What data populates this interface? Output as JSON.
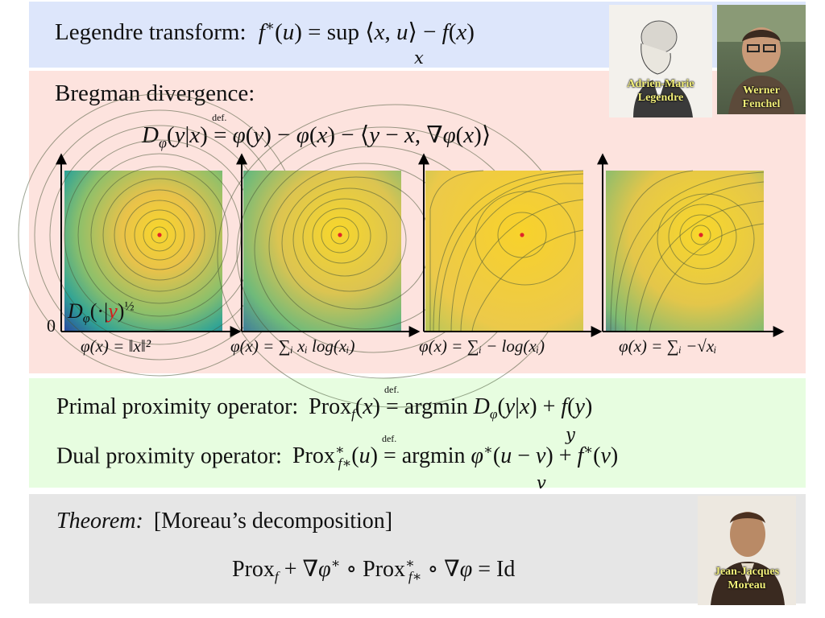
{
  "sections": {
    "legendre": {
      "label": "Legendre transform:",
      "formula_main": "f*(u) = sup ⟨x, u⟩ − f(x)",
      "formula_under": "x"
    },
    "bregman": {
      "label": "Bregman divergence:",
      "formula": "Dφ(y|x) ≝ φ(y) − φ(x) − ⟨y − x, ∇φ(x)⟩",
      "plot_overlay": "Dφ(·|y)^(1/2)",
      "origin_label": "0",
      "plots": [
        {
          "caption": "φ(x) = ‖x‖²"
        },
        {
          "caption": "φ(x) = ∑ᵢ xᵢ log(xᵢ)"
        },
        {
          "caption": "φ(x) = ∑ᵢ − log(xᵢ)"
        },
        {
          "caption": "φ(x) = ∑ᵢ −√xᵢ"
        }
      ]
    },
    "prox": {
      "primal_label": "Primal proximity operator:",
      "primal_formula": "Prox_f(x) ≝ argmin Dφ(y|x) + f(y)",
      "primal_under": "y",
      "dual_label": "Dual proximity operator:",
      "dual_formula": "Prox*_f*(u) ≝ argmin φ*(u − v) + f*(v)",
      "dual_under": "v"
    },
    "theorem": {
      "label": "Theorem:",
      "name": "[Moreau’s decomposition]",
      "formula": "Prox_f + ∇φ* ∘ Prox*_f* ∘ ∇φ = Id"
    }
  },
  "portraits": [
    {
      "name_line1": "Adrien-Marie",
      "name_line2": "Legendre"
    },
    {
      "name_line1": "Werner",
      "name_line2": "Fenchel"
    },
    {
      "name_line1": "Jean-Jacques",
      "name_line2": "Moreau"
    }
  ]
}
